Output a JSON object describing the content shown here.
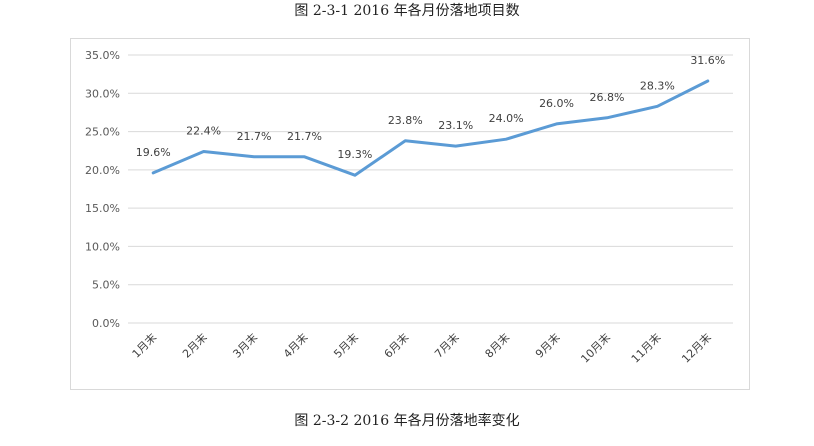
{
  "captions": {
    "top": "图 2-3-1  2016 年各月份落地项目数",
    "bottom": "图 2-3-2  2016 年各月份落地率变化"
  },
  "colors": {
    "line": "#5b9bd5",
    "grid": "#d9d9d9",
    "frame": "#d9d9d9"
  },
  "chart_data": {
    "type": "line",
    "categories": [
      "1月末",
      "2月末",
      "3月末",
      "4月末",
      "5月末",
      "6月末",
      "7月末",
      "8月末",
      "9月末",
      "10月末",
      "11月末",
      "12月末"
    ],
    "series": [
      {
        "values": [
          19.6,
          22.4,
          21.7,
          21.7,
          19.3,
          23.8,
          23.1,
          24.0,
          26.0,
          26.8,
          28.3,
          31.6
        ],
        "data_labels": [
          "19.6%",
          "22.4%",
          "21.7%",
          "21.7%",
          "19.3%",
          "23.8%",
          "23.1%",
          "24.0%",
          "26.0%",
          "26.8%",
          "28.3%",
          "31.6%"
        ]
      }
    ],
    "ylim": [
      0,
      35
    ],
    "y_ticks": [
      0,
      5,
      10,
      15,
      20,
      25,
      30,
      35
    ],
    "y_tick_labels": [
      "0.0%",
      "5.0%",
      "10.0%",
      "15.0%",
      "20.0%",
      "25.0%",
      "30.0%",
      "35.0%"
    ],
    "grid": true,
    "legend": "none"
  }
}
